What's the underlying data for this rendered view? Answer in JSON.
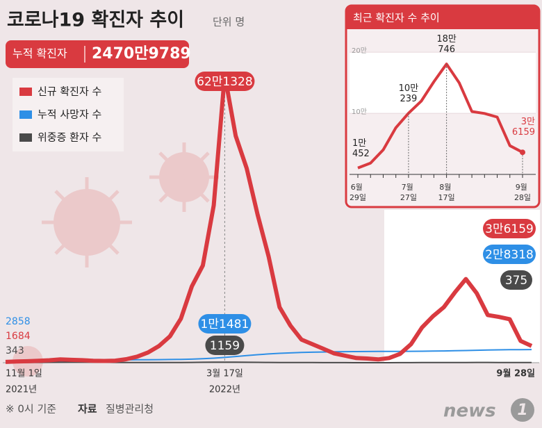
{
  "title": "코로나19 확진자 추이",
  "unit": "단위 명",
  "cumulative": {
    "label": "누적 확진자",
    "value": "2470만9789"
  },
  "footer": {
    "note": "※ 0시 기준",
    "source_label": "자료",
    "source": "질병관리청"
  },
  "logo": {
    "text": "news",
    "number": "1"
  },
  "chart_data": [
    {
      "type": "line",
      "legend": "upper left",
      "ylim": [
        0,
        650000
      ],
      "categories": [
        "11월 1일",
        null,
        null,
        null,
        null,
        null,
        null,
        null,
        null,
        null,
        null,
        null,
        null,
        null,
        null,
        null,
        null,
        null,
        null,
        null,
        "3월 17일",
        null,
        null,
        null,
        null,
        null,
        null,
        null,
        null,
        null,
        null,
        null,
        null,
        null,
        null,
        null,
        null,
        null,
        null,
        null,
        null,
        null,
        null,
        null,
        null,
        null,
        null,
        null,
        "9월 28일"
      ],
      "category_years": {
        "0": "2021년",
        "20": "2022년"
      },
      "series": [
        {
          "name": "신규 확진자 수",
          "color": "#d93a40",
          "values": [
            1684,
            2500,
            3200,
            4000,
            5300,
            7100,
            6200,
            5400,
            4200,
            3800,
            4400,
            7500,
            13000,
            22000,
            36000,
            57000,
            95000,
            165000,
            210000,
            340000,
            621328,
            490000,
            420000,
            320000,
            230000,
            120000,
            80000,
            50000,
            40000,
            30000,
            20000,
            15000,
            10000,
            9000,
            7000,
            10000,
            19000,
            40000,
            76000,
            100239,
            119922,
            151748,
            180746,
            150000,
            103000,
            99000,
            94000,
            47000,
            36159
          ],
          "value_labels": [
            null,
            null,
            null,
            null,
            null,
            null,
            null,
            null,
            null,
            null,
            null,
            null,
            null,
            null,
            null,
            null,
            null,
            null,
            null,
            null,
            "62만1328",
            null,
            null,
            null,
            null,
            null,
            null,
            null,
            null,
            null,
            null,
            null,
            null,
            null,
            null,
            null,
            null,
            null,
            null,
            null,
            null,
            null,
            null,
            null,
            null,
            null,
            null,
            null,
            "3만6159"
          ]
        },
        {
          "name": "누적 사망자 수",
          "color": "#2e8fe6",
          "values": [
            2858,
            2980,
            3140,
            3300,
            3550,
            3850,
            4250,
            4700,
            5150,
            5500,
            5800,
            6050,
            6250,
            6400,
            6600,
            6850,
            7200,
            7700,
            8500,
            9700,
            11481,
            13400,
            15500,
            17300,
            18900,
            20200,
            21200,
            22000,
            22600,
            23100,
            23500,
            23800,
            24000,
            24200,
            24300,
            24400,
            24500,
            24600,
            24800,
            25100,
            25400,
            25800,
            26300,
            26800,
            27300,
            27700,
            28000,
            28200,
            28318
          ],
          "value_labels": [
            null,
            null,
            null,
            null,
            null,
            null,
            null,
            null,
            null,
            null,
            null,
            null,
            null,
            null,
            null,
            null,
            null,
            null,
            null,
            null,
            "1만1481",
            null,
            null,
            null,
            null,
            null,
            null,
            null,
            null,
            null,
            null,
            null,
            null,
            null,
            null,
            null,
            null,
            null,
            null,
            null,
            null,
            null,
            null,
            null,
            null,
            null,
            null,
            null,
            "2만8318"
          ]
        },
        {
          "name": "위중증 환자 수",
          "color": "#4a4a4a",
          "values": [
            343,
            400,
            500,
            630,
            780,
            900,
            1050,
            1100,
            1050,
            850,
            650,
            450,
            390,
            280,
            270,
            290,
            400,
            600,
            950,
            1100,
            1159,
            1100,
            950,
            800,
            600,
            450,
            350,
            300,
            230,
            180,
            150,
            100,
            70,
            60,
            60,
            70,
            110,
            160,
            250,
            300,
            350,
            450,
            520,
            570,
            550,
            520,
            480,
            420,
            375
          ]
        }
      ]
    },
    {
      "type": "line",
      "title": "최근 확진자 수 추이",
      "ylim": [
        0,
        215000
      ],
      "yticks": [
        {
          "value": 100000,
          "label": "10만"
        },
        {
          "value": 200000,
          "label": "20만"
        }
      ],
      "categories": [
        "6월 29일",
        null,
        null,
        null,
        "7월 27일",
        null,
        null,
        "8월 17일",
        null,
        null,
        null,
        null,
        null,
        "9월 28일"
      ],
      "series": [
        {
          "name": "신규 확진자 수",
          "color": "#d93a40",
          "values": [
            10452,
            18511,
            40266,
            76402,
            100239,
            119922,
            151748,
            180746,
            150000,
            103000,
            99800,
            93900,
            47000,
            36159
          ],
          "value_labels": [
            "1만452",
            null,
            null,
            null,
            "10만239",
            null,
            null,
            "18만746",
            null,
            null,
            null,
            null,
            null,
            "3만6159"
          ]
        }
      ]
    }
  ]
}
